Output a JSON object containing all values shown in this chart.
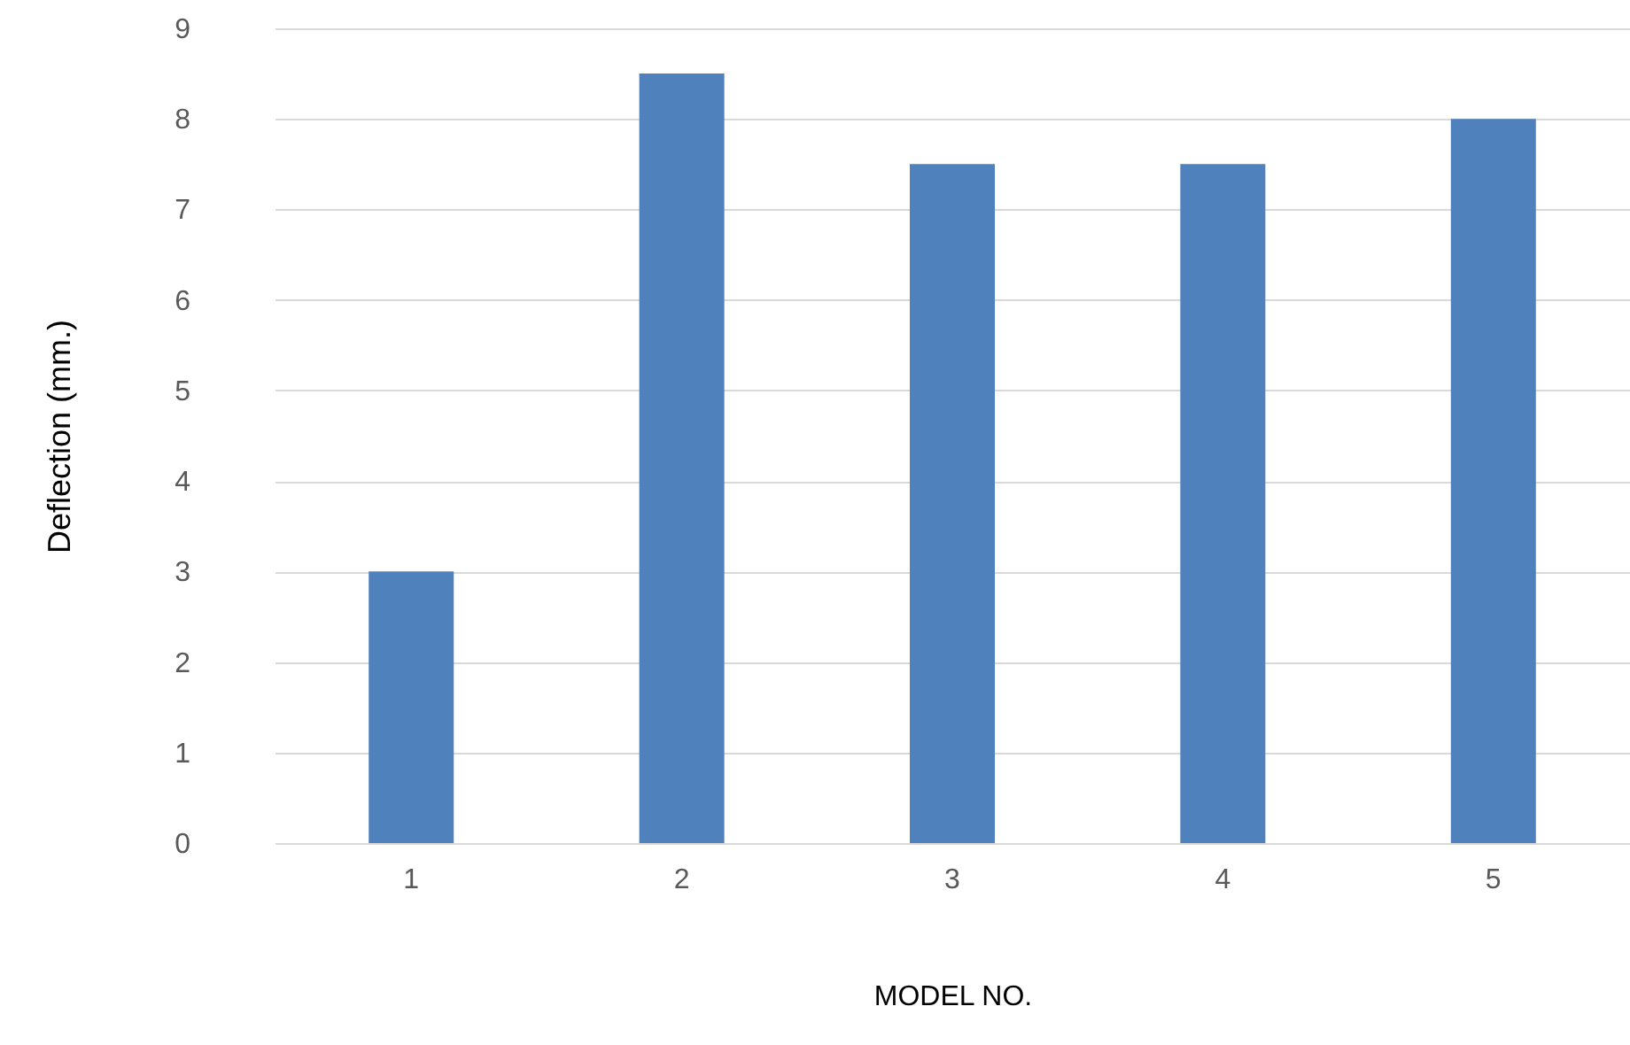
{
  "chart_data": {
    "type": "bar",
    "xlabel": "MODEL NO.",
    "ylabel": "Deflection (mm.)",
    "categories": [
      "1",
      "2",
      "3",
      "4",
      "5"
    ],
    "values": [
      3,
      8.5,
      7.5,
      7.5,
      8
    ],
    "color": "#4f81bd",
    "ylim": [
      0,
      9
    ],
    "yticks": [
      0,
      1,
      2,
      3,
      4,
      5,
      6,
      7,
      8,
      9
    ],
    "grid": "y"
  }
}
